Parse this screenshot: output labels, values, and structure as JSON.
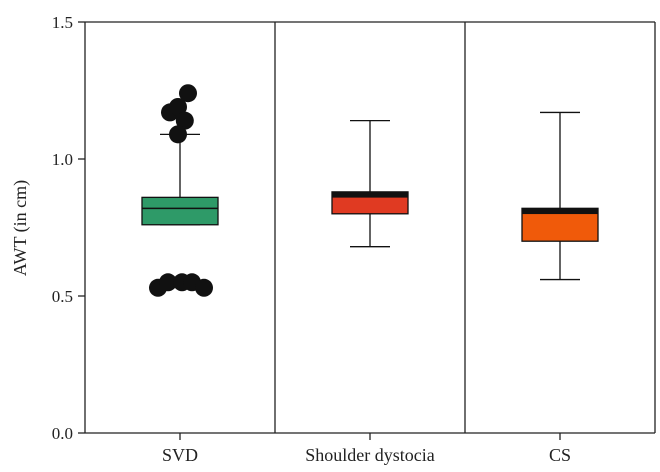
{
  "chart_data": {
    "type": "boxplot",
    "title": "",
    "xlabel": "",
    "ylabel": "AWT (in cm)",
    "ylim": [
      0.0,
      1.5
    ],
    "yticks": [
      "0.0",
      "0.5",
      "1.0",
      "1.5"
    ],
    "ytick_values": [
      0.0,
      0.5,
      1.0,
      1.5
    ],
    "categories": [
      "SVD",
      "Shoulder dystocia",
      "CS"
    ],
    "series": [
      {
        "category": "SVD",
        "color": "#2e9a68",
        "whisker_low": 0.76,
        "q1": 0.76,
        "median": 0.82,
        "q3": 0.86,
        "whisker_high": 1.09,
        "outliers": [
          {
            "x": -0.25,
            "y": 1.17
          },
          {
            "x": -0.05,
            "y": 1.19
          },
          {
            "x": 0.2,
            "y": 1.24
          },
          {
            "x": 0.12,
            "y": 1.14
          },
          {
            "x": -0.05,
            "y": 1.09
          },
          {
            "x": -0.55,
            "y": 0.53
          },
          {
            "x": -0.3,
            "y": 0.55
          },
          {
            "x": 0.05,
            "y": 0.55
          },
          {
            "x": 0.3,
            "y": 0.55
          },
          {
            "x": 0.6,
            "y": 0.53
          }
        ]
      },
      {
        "category": "Shoulder dystocia",
        "color": "#e03a22",
        "whisker_low": 0.68,
        "q1": 0.8,
        "median": 0.87,
        "q3": 0.88,
        "whisker_high": 1.14,
        "outliers": []
      },
      {
        "category": "CS",
        "color": "#f05a0a",
        "whisker_low": 0.56,
        "q1": 0.7,
        "median": 0.81,
        "q3": 0.82,
        "whisker_high": 1.17,
        "outliers": []
      }
    ],
    "separators": true,
    "grid": false,
    "legend": "none"
  }
}
